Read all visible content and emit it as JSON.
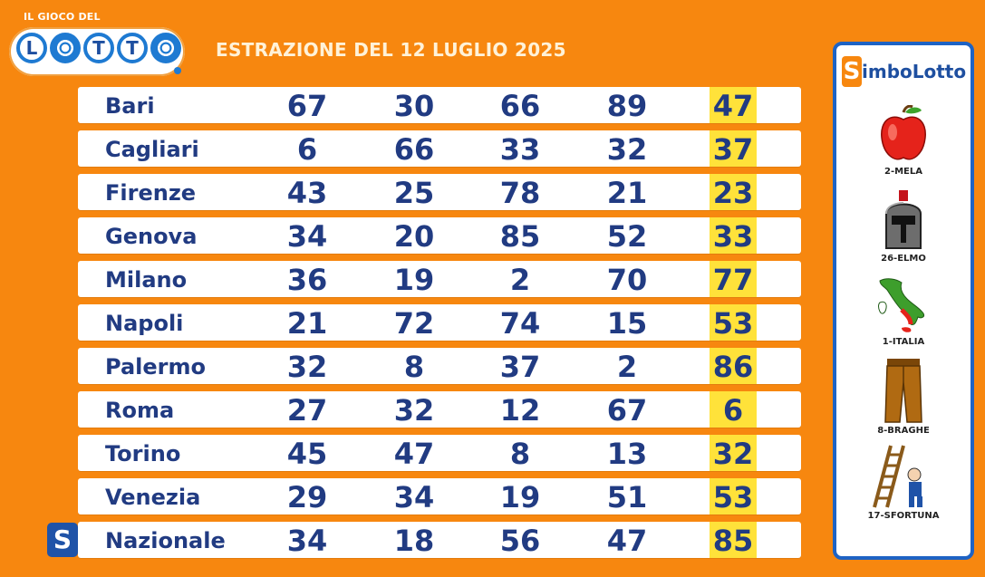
{
  "logo": {
    "top_text": "IL GIOCO DEL",
    "letters": [
      "L",
      "",
      "T",
      "T",
      ""
    ]
  },
  "heading": "ESTRAZIONE DEL 12 LUGLIO 2025",
  "rows": [
    {
      "city": "Bari",
      "nums": [
        "67",
        "30",
        "66",
        "89",
        "47"
      ]
    },
    {
      "city": "Cagliari",
      "nums": [
        "6",
        "66",
        "33",
        "32",
        "37"
      ]
    },
    {
      "city": "Firenze",
      "nums": [
        "43",
        "25",
        "78",
        "21",
        "23"
      ]
    },
    {
      "city": "Genova",
      "nums": [
        "34",
        "20",
        "85",
        "52",
        "33"
      ]
    },
    {
      "city": "Milano",
      "nums": [
        "36",
        "19",
        "2",
        "70",
        "77"
      ]
    },
    {
      "city": "Napoli",
      "nums": [
        "21",
        "72",
        "74",
        "15",
        "53"
      ]
    },
    {
      "city": "Palermo",
      "nums": [
        "32",
        "8",
        "37",
        "2",
        "86"
      ]
    },
    {
      "city": "Roma",
      "nums": [
        "27",
        "32",
        "12",
        "67",
        "6"
      ]
    },
    {
      "city": "Torino",
      "nums": [
        "45",
        "47",
        "8",
        "13",
        "32"
      ]
    },
    {
      "city": "Venezia",
      "nums": [
        "29",
        "34",
        "19",
        "51",
        "53"
      ]
    },
    {
      "city": "Nazionale",
      "nums": [
        "34",
        "18",
        "56",
        "47",
        "85"
      ]
    }
  ],
  "nazionale_badge": "S",
  "simbolotto": {
    "title_initial": "S",
    "title_rest": "imboLotto",
    "symbols": [
      {
        "label": "2-MELA",
        "icon": "apple-icon"
      },
      {
        "label": "26-ELMO",
        "icon": "helmet-icon"
      },
      {
        "label": "1-ITALIA",
        "icon": "italy-map-icon"
      },
      {
        "label": "8-BRAGHE",
        "icon": "trousers-icon"
      },
      {
        "label": "17-SFORTUNA",
        "icon": "ladder-icon"
      }
    ]
  },
  "colors": {
    "background": "#f7870f",
    "text": "#213b82",
    "highlight": "#ffe23a",
    "panel_border": "#1e63c4"
  }
}
